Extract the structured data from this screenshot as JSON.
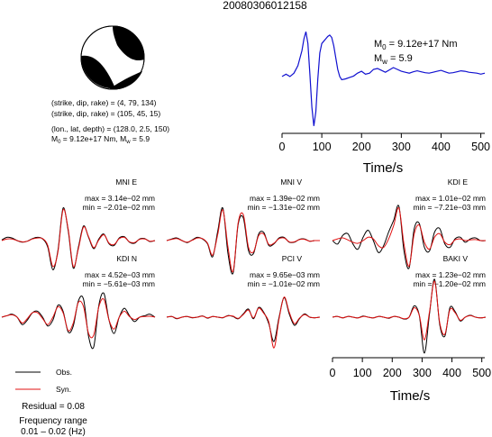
{
  "title": "20080306012158",
  "source_params": {
    "plane1": "(strike, dip, rake) = (4, 79, 134)",
    "plane2": "(strike, dip, rake) = (105, 45, 15)",
    "location": "(lon., lat, depth) = (128.0, 2.5, 150)",
    "moment_line_prefix": "M",
    "moment_line_sub0": "0",
    "moment_line_mid": " = 9.12e+17 Nm, M",
    "moment_line_subw": "w",
    "moment_line_suffix": " = 5.9"
  },
  "stf_labels": {
    "m0_prefix": "M",
    "m0_sub": "0",
    "m0_value": " = 9.12e+17 Nm",
    "mw_prefix": "M",
    "mw_sub": "w",
    "mw_value": " = 5.9"
  },
  "legend": {
    "obs": "Obs.",
    "syn": "Syn."
  },
  "residual": "Residual = 0.08",
  "frequency_label": "Frequency range",
  "frequency_value": "0.01 – 0.02 (Hz)",
  "colors": {
    "observed": "#000000",
    "synthetic": "#e01010",
    "stf": "#1010d0",
    "beachball": "#000000"
  },
  "chart_data": [
    {
      "type": "line",
      "name": "source-time-function",
      "xlabel": "Time/s",
      "ylabel": "",
      "xlim": [
        0,
        510
      ],
      "xticks": [
        0,
        100,
        200,
        300,
        400,
        500
      ],
      "ylim": [
        -1.1,
        1.1
      ],
      "series": [
        {
          "x": [
            0,
            10,
            20,
            30,
            40,
            50,
            55,
            60,
            65,
            70,
            75,
            80,
            85,
            90,
            95,
            100,
            105,
            110,
            115,
            120,
            125,
            130,
            135,
            140,
            145,
            150,
            160,
            170,
            180,
            190,
            200,
            210,
            220,
            230,
            240,
            250,
            260,
            270,
            280,
            290,
            300,
            310,
            320,
            330,
            340,
            350,
            360,
            370,
            380,
            390,
            400,
            410,
            420,
            430,
            440,
            450,
            460,
            470,
            480,
            490,
            500,
            510
          ],
          "y": [
            0.05,
            0.1,
            0.05,
            0.12,
            0.28,
            0.6,
            0.85,
            1.0,
            0.75,
            0.1,
            -0.6,
            -1.0,
            -0.7,
            0.0,
            0.55,
            0.75,
            0.8,
            0.85,
            0.9,
            0.93,
            0.88,
            0.7,
            0.45,
            0.2,
            0.05,
            -0.02,
            0.0,
            0.03,
            0.06,
            0.12,
            0.16,
            0.1,
            0.12,
            0.2,
            0.22,
            0.18,
            0.14,
            0.19,
            0.24,
            0.2,
            0.16,
            0.14,
            0.12,
            0.15,
            0.17,
            0.15,
            0.13,
            0.12,
            0.14,
            0.16,
            0.18,
            0.15,
            0.12,
            0.13,
            0.15,
            0.17,
            0.16,
            0.14,
            0.13,
            0.12,
            0.1,
            0.12
          ]
        }
      ]
    },
    {
      "type": "line",
      "name": "waveform-fits",
      "xlabel": "Time/s",
      "xlim": [
        0,
        510
      ],
      "xticks": [
        0,
        100,
        200,
        300,
        400,
        500
      ],
      "panels": [
        {
          "station": "MNI E",
          "max": "max = 3.14e−02 mm",
          "min": "min = −2.01e−02 mm",
          "obs": [
            0.02,
            0.1,
            0.08,
            0.0,
            -0.05,
            -0.02,
            0.06,
            0.1,
            0.05,
            -0.2,
            -0.9,
            -0.3,
            1.0,
            0.3,
            -0.85,
            -0.2,
            0.45,
            0.1,
            -0.25,
            0.05,
            0.2,
            -0.1,
            -0.15,
            0.08,
            0.12,
            -0.05,
            -0.08,
            0.05,
            0.06,
            -0.03,
            0.0
          ],
          "syn": [
            0.0,
            0.05,
            0.05,
            0.0,
            -0.04,
            -0.02,
            0.05,
            0.08,
            0.06,
            -0.15,
            -0.8,
            -0.35,
            0.95,
            0.35,
            -0.8,
            -0.25,
            0.42,
            0.12,
            -0.22,
            0.02,
            0.18,
            -0.08,
            -0.12,
            0.06,
            0.1,
            -0.04,
            -0.06,
            0.04,
            0.05,
            -0.02,
            0.0
          ]
        },
        {
          "station": "MNI V",
          "max": "max = 1.39e−02 mm",
          "min": "min = −1.31e−02 mm",
          "obs": [
            0.0,
            0.05,
            0.08,
            0.0,
            -0.06,
            0.02,
            0.1,
            0.05,
            -0.1,
            -0.5,
            0.3,
            1.0,
            -0.4,
            -1.0,
            0.5,
            0.7,
            -0.3,
            -0.4,
            0.2,
            0.25,
            -0.15,
            -0.1,
            0.08,
            0.1,
            -0.05,
            -0.05,
            0.04,
            0.05,
            -0.02,
            0.0,
            0.0
          ],
          "syn": [
            0.0,
            0.04,
            0.06,
            0.0,
            -0.05,
            0.01,
            0.08,
            0.06,
            -0.08,
            -0.45,
            0.2,
            0.95,
            -0.2,
            -0.95,
            0.55,
            0.8,
            -0.2,
            -0.35,
            0.15,
            0.2,
            -0.12,
            -0.08,
            0.06,
            0.08,
            -0.04,
            -0.04,
            0.03,
            0.04,
            -0.02,
            0.0,
            0.0
          ]
        },
        {
          "station": "KDI E",
          "max": "max = 1.01e−02 mm",
          "min": "min = −7.21e−03 mm",
          "obs": [
            0.0,
            -0.1,
            0.15,
            0.2,
            -0.1,
            -0.25,
            0.1,
            0.3,
            0.0,
            -0.35,
            -0.15,
            0.25,
            0.6,
            1.0,
            -0.3,
            -0.8,
            0.35,
            0.5,
            -0.2,
            -0.3,
            0.25,
            0.35,
            -0.1,
            -0.2,
            0.05,
            0.1,
            -0.05,
            0.05,
            0.08,
            0.0,
            0.0
          ],
          "syn": [
            0.0,
            0.05,
            0.08,
            0.02,
            -0.05,
            -0.08,
            0.0,
            0.1,
            0.05,
            -0.15,
            -0.2,
            0.05,
            0.45,
            0.95,
            -0.1,
            -0.75,
            0.2,
            0.45,
            -0.05,
            -0.25,
            0.1,
            0.2,
            -0.05,
            -0.12,
            0.02,
            0.05,
            0.0,
            0.02,
            0.03,
            0.0,
            0.0
          ]
        },
        {
          "station": "KDI N",
          "max": "max = 4.52e−03 mm",
          "min": "min = −5.61e−03 mm",
          "obs": [
            0.0,
            0.05,
            0.1,
            0.0,
            -0.25,
            -0.1,
            0.15,
            0.2,
            0.0,
            -0.3,
            -0.1,
            0.4,
            0.2,
            -0.5,
            -0.3,
            0.55,
            0.6,
            -0.65,
            -1.0,
            0.4,
            0.8,
            -0.1,
            -0.55,
            0.0,
            0.3,
            0.05,
            -0.15,
            0.0,
            0.05,
            0.1,
            0.0
          ],
          "syn": [
            0.0,
            0.05,
            0.08,
            0.0,
            -0.2,
            -0.05,
            0.15,
            0.15,
            -0.05,
            -0.25,
            0.0,
            0.35,
            0.15,
            -0.45,
            -0.2,
            0.5,
            0.35,
            -0.55,
            -0.6,
            0.35,
            0.6,
            -0.1,
            -0.4,
            0.0,
            0.2,
            0.02,
            -0.08,
            0.0,
            0.02,
            0.03,
            0.0
          ]
        },
        {
          "station": "PCI V",
          "max": "max = 9.65e−03 mm",
          "min": "min = −1.01e−02 mm",
          "obs": [
            0.0,
            0.02,
            -0.05,
            0.0,
            0.02,
            -0.02,
            0.0,
            0.04,
            -0.03,
            0.02,
            0.0,
            -0.02,
            0.05,
            0.02,
            -0.05,
            0.1,
            0.25,
            -0.05,
            0.3,
            0.15,
            -0.2,
            -0.75,
            0.0,
            0.6,
            0.1,
            -0.25,
            -0.05,
            0.1,
            0.0,
            -0.02,
            0.0
          ],
          "syn": [
            0.0,
            0.02,
            -0.04,
            0.0,
            0.02,
            -0.01,
            0.0,
            0.03,
            -0.02,
            0.02,
            0.0,
            -0.01,
            0.04,
            0.03,
            -0.04,
            0.08,
            0.22,
            -0.02,
            0.28,
            0.12,
            -0.15,
            -0.95,
            -0.05,
            0.62,
            0.15,
            -0.2,
            -0.03,
            0.08,
            0.0,
            -0.02,
            0.0
          ]
        },
        {
          "station": "BAKI V",
          "max": "max = 1.23e−02 mm",
          "min": "min = −1.20e−02 mm",
          "obs": [
            0.0,
            0.02,
            -0.02,
            0.02,
            0.0,
            -0.02,
            0.03,
            0.0,
            -0.02,
            0.02,
            0.0,
            -0.03,
            0.02,
            0.0,
            -0.05,
            0.0,
            0.3,
            0.05,
            -0.95,
            0.1,
            1.0,
            -0.2,
            -0.5,
            0.25,
            0.15,
            -0.1,
            0.0,
            0.05,
            0.0,
            -0.02,
            0.0
          ],
          "syn": [
            0.0,
            0.02,
            -0.02,
            0.02,
            0.0,
            -0.02,
            0.02,
            0.0,
            -0.02,
            0.02,
            0.0,
            -0.02,
            0.02,
            0.0,
            -0.04,
            0.0,
            0.25,
            0.05,
            -0.6,
            0.15,
            0.95,
            -0.15,
            -0.45,
            0.2,
            0.12,
            -0.08,
            0.0,
            0.04,
            0.0,
            -0.02,
            0.0
          ]
        }
      ]
    }
  ]
}
